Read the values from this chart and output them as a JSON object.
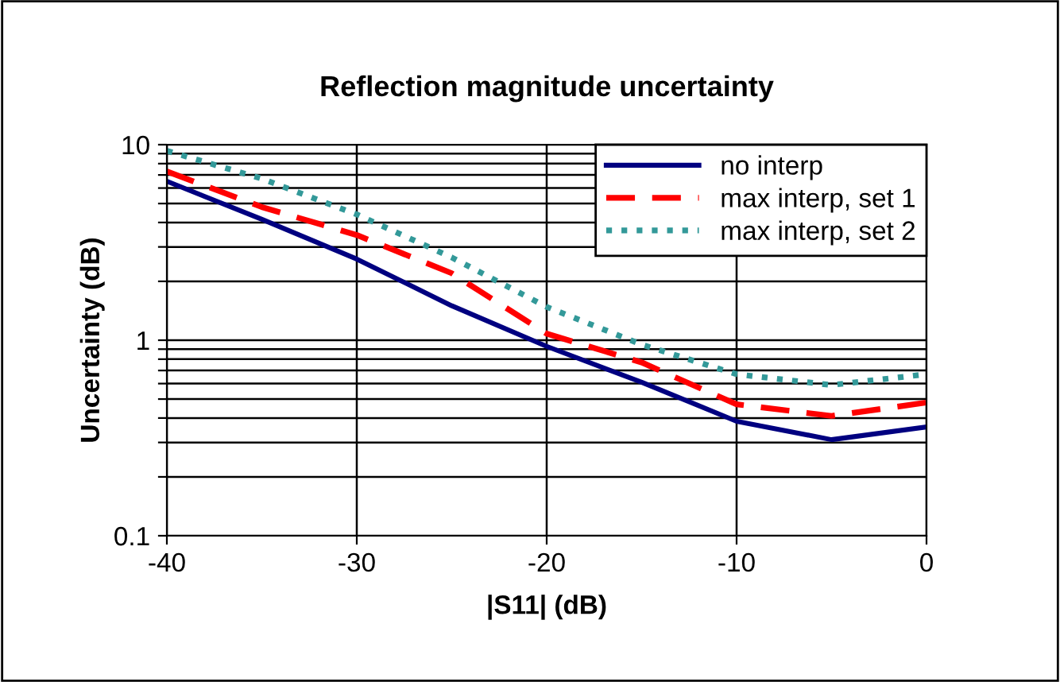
{
  "chart_data": {
    "type": "line",
    "title": "Reflection magnitude uncertainty",
    "xlabel": "|S11| (dB)",
    "ylabel": "Uncertainty (dB)",
    "x": [
      -40,
      -35,
      -30,
      -25,
      -20,
      -15,
      -10,
      -5,
      0
    ],
    "series": [
      {
        "name": "no interp",
        "color": "#000080",
        "line_style": "solid",
        "values": [
          6.5,
          4.15,
          2.6,
          1.5,
          0.93,
          0.61,
          0.385,
          0.31,
          0.36
        ]
      },
      {
        "name": "max interp, set 1",
        "color": "#ff0000",
        "line_style": "dashed",
        "values": [
          7.3,
          4.8,
          3.45,
          2.2,
          1.08,
          0.77,
          0.47,
          0.41,
          0.48
        ]
      },
      {
        "name": "max interp, set 2",
        "color": "#339999",
        "line_style": "dotted",
        "values": [
          9.3,
          6.7,
          4.4,
          2.65,
          1.48,
          0.95,
          0.67,
          0.59,
          0.67
        ]
      }
    ],
    "log": "y",
    "xlim": [
      -40,
      0
    ],
    "xticks": [
      -40,
      -30,
      -20,
      -10,
      0
    ],
    "ylim": [
      0.1,
      10
    ],
    "yticks": [
      0.1,
      {
        "value": 0.2,
        "label": null
      },
      {
        "value": 0.3,
        "label": null
      },
      {
        "value": 0.4,
        "label": null
      },
      {
        "value": 0.5,
        "label": null
      },
      {
        "value": 0.6,
        "label": null
      },
      {
        "value": 0.7,
        "label": null
      },
      {
        "value": 0.8,
        "label": null
      },
      {
        "value": 0.9,
        "label": null
      },
      1,
      {
        "value": 2,
        "label": null
      },
      {
        "value": 3,
        "label": null
      },
      {
        "value": 4,
        "label": null
      },
      {
        "value": 5,
        "label": null
      },
      {
        "value": 6,
        "label": null
      },
      {
        "value": 7,
        "label": null
      },
      {
        "value": 8,
        "label": null
      },
      {
        "value": 9,
        "label": null
      },
      10
    ],
    "grid": true,
    "legend": "top right"
  }
}
